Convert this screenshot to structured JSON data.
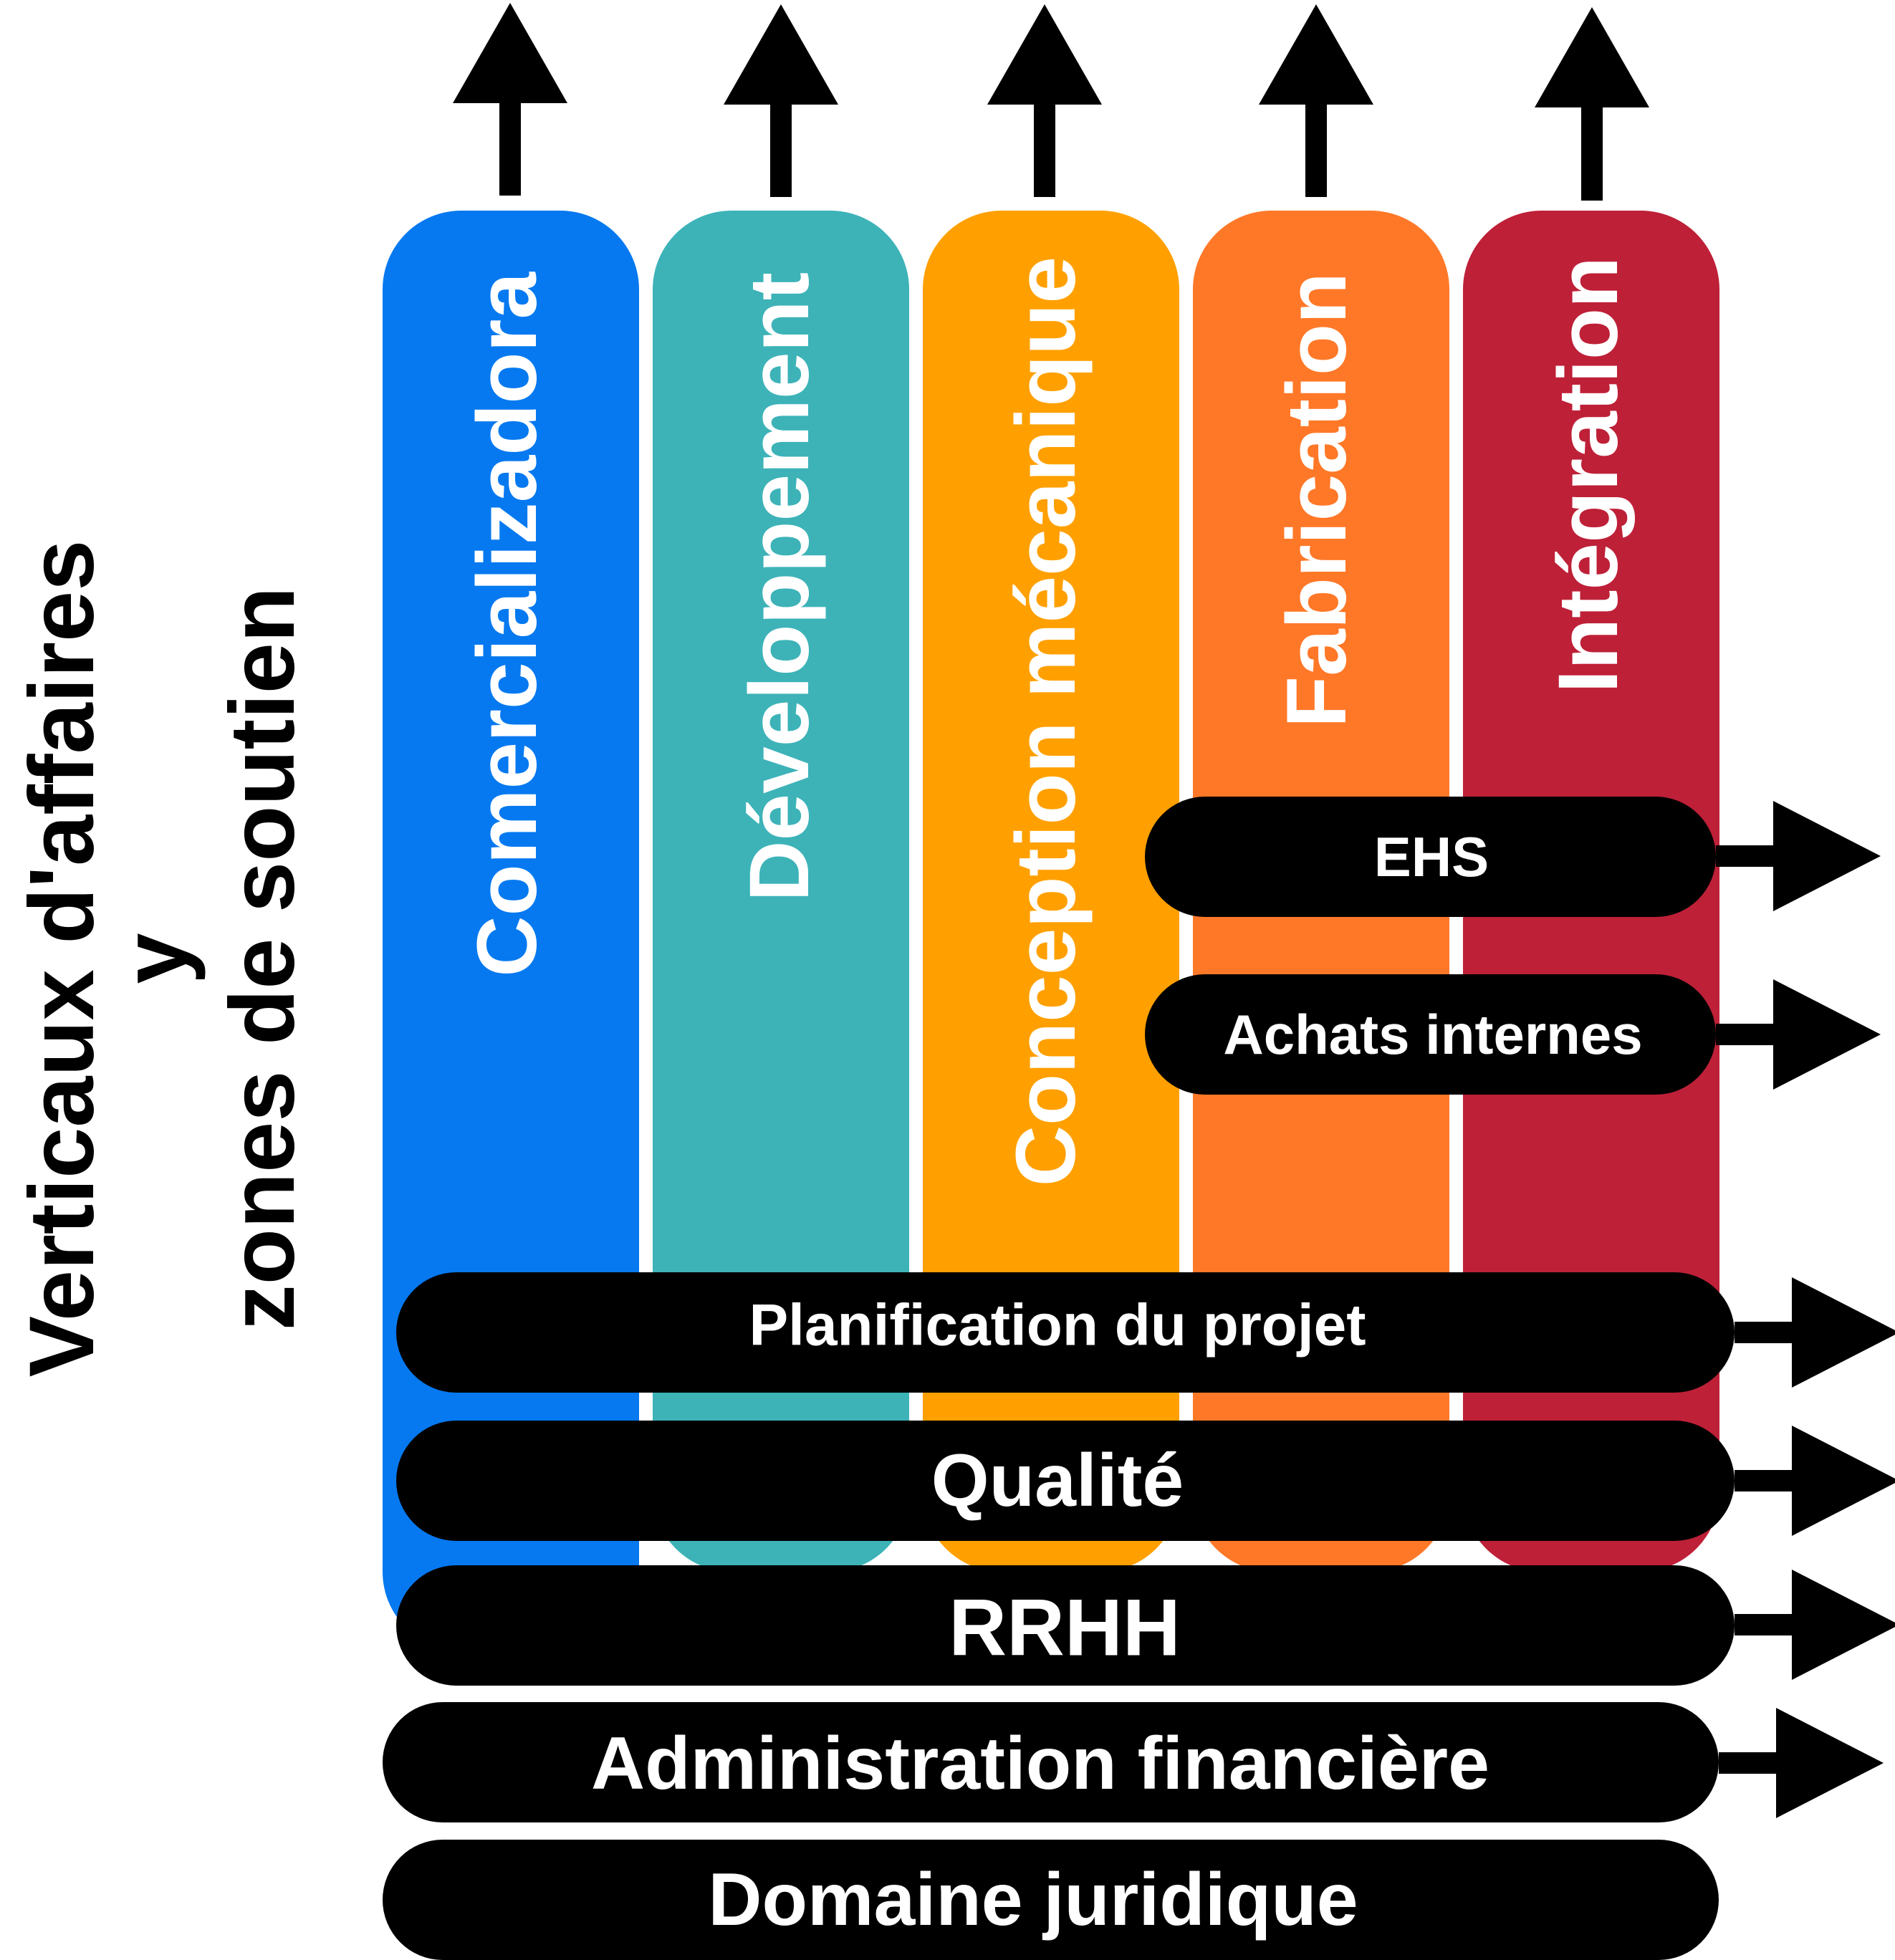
{
  "side_title": {
    "line1": "Verticaux d'affaires",
    "line2": "y",
    "line3": "zones de soutien"
  },
  "verticals": [
    {
      "label": "Comercializadora",
      "color": "#0679F0"
    },
    {
      "label": "Développement",
      "color": "#3DB3B8"
    },
    {
      "label": "Conception mécanique",
      "color": "#FFA000"
    },
    {
      "label": "Fabrication",
      "color": "#FF7828"
    },
    {
      "label": "Intégration",
      "color": "#BE2038"
    }
  ],
  "support_zones": [
    {
      "label": "EHS"
    },
    {
      "label": "Achats internes"
    },
    {
      "label": "Planification du projet"
    },
    {
      "label": "Qualité"
    },
    {
      "label": "RRHH"
    },
    {
      "label": "Administration financière"
    },
    {
      "label": "Domaine juridique"
    }
  ],
  "colors": {
    "band": "#000000",
    "text": "#ffffff",
    "arrow": "#000000"
  }
}
